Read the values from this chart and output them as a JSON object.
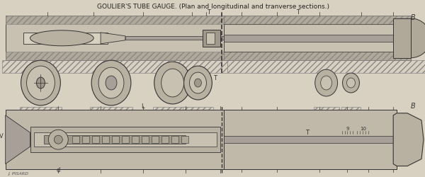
{
  "title": "GOULIER'S TUBE GAUGE. (Plan and longitudinal and tranverse sections.)",
  "bg_color": "#d8d0c0",
  "fig_bg": "#c8c0b0",
  "signature": "J. PISARD",
  "label_T": "T",
  "label_B": "B",
  "label_V": "V",
  "label_L": "L",
  "label_d": "d",
  "label_9": "9",
  "label_10": "10",
  "hatch_color": "#888888",
  "line_color": "#333333",
  "dark_gray": "#555555",
  "light_gray": "#aaaaaa",
  "very_light": "#cccccc"
}
